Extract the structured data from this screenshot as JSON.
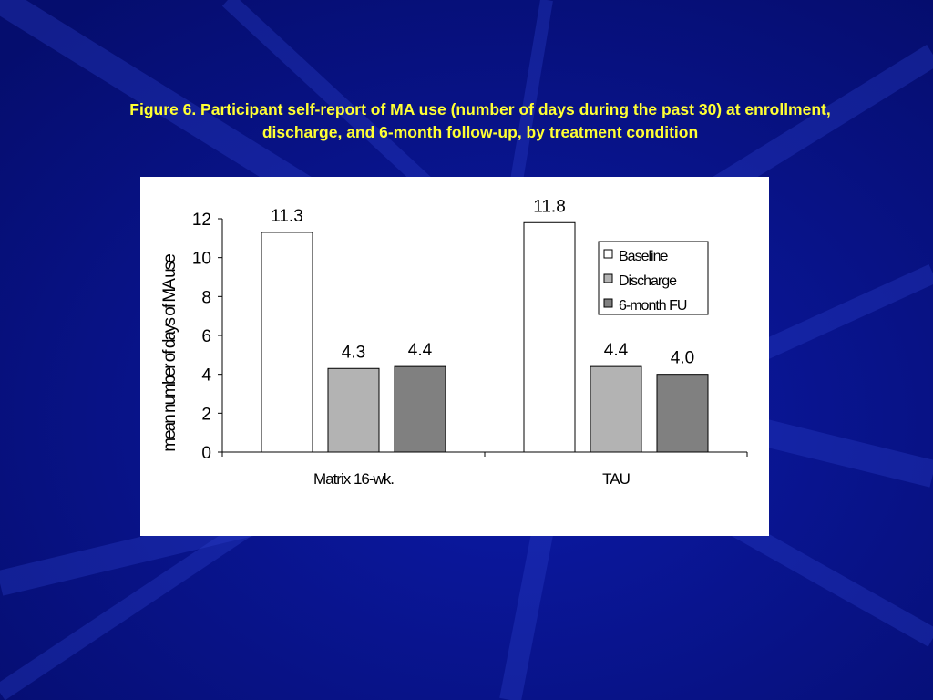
{
  "slide": {
    "title_line1": "Figure 6. Participant self-report of MA use (number of days during the past 30) at enrollment,",
    "title_line2": "discharge, and 6-month follow-up, by treatment condition",
    "background_color": "#0a1496",
    "title_color": "#ffff33"
  },
  "chart_data": {
    "type": "bar",
    "categories": [
      "Matrix 16-wk.",
      "TAU"
    ],
    "series": [
      {
        "name": "Baseline",
        "values": [
          11.3,
          11.8
        ],
        "labels": [
          "11.3",
          "11.8"
        ],
        "color": "#ffffff"
      },
      {
        "name": "Discharge",
        "values": [
          4.3,
          4.4
        ],
        "labels": [
          "4.3",
          "4.4"
        ],
        "color": "#b3b3b3"
      },
      {
        "name": "6-month FU",
        "values": [
          4.4,
          4.0
        ],
        "labels": [
          "4.4",
          "4.0"
        ],
        "color": "#808080"
      }
    ],
    "ylabel": "mean number of days of MA use",
    "xlabel": "",
    "ylim": [
      0,
      12
    ],
    "yticks": [
      "0",
      "2",
      "4",
      "6",
      "8",
      "10",
      "12"
    ],
    "grid": false,
    "legend_position": "right"
  }
}
